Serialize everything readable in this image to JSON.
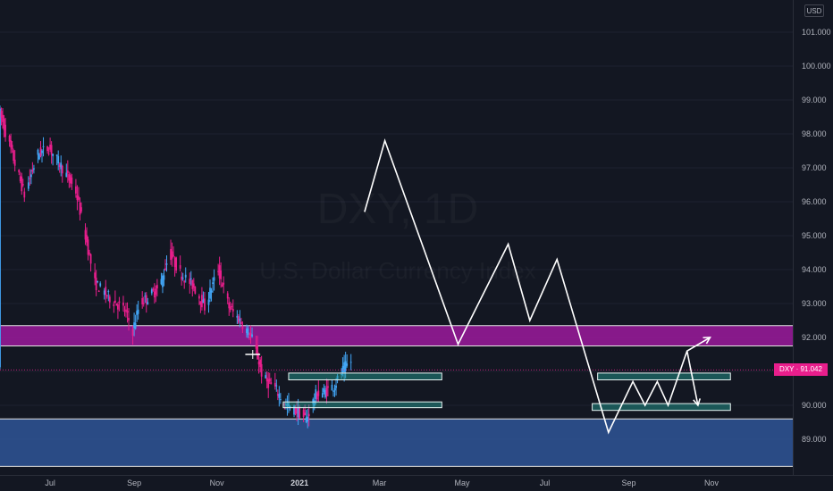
{
  "currency_badge": "USD",
  "price_tag": {
    "symbol": "DXY",
    "value": "91.042"
  },
  "watermark": {
    "symbol": "DXY, 1D",
    "subtitle": "U.S. Dollar Currency Index"
  },
  "colors": {
    "background": "#131722",
    "up_candle": "#42a5f5",
    "down_candle": "#e91e8c",
    "resistance_zone": "#9c1a9c",
    "support_zone": "#2f5597",
    "target_box": "#26a69a",
    "projection_line": "#ffffff"
  },
  "chart_data": {
    "type": "candlestick",
    "symbol": "DXY",
    "interval": "1D",
    "last_price": 91.042,
    "y_axis": {
      "ticks": [
        "101.000",
        "100.000",
        "99.000",
        "98.000",
        "97.000",
        "96.000",
        "95.000",
        "94.000",
        "93.000",
        "92.000",
        "91.000",
        "90.000",
        "89.000"
      ],
      "range": [
        88.1,
        101.4
      ]
    },
    "x_axis": {
      "ticks": [
        {
          "label": "Jul",
          "date": "2020-07-01",
          "bold": false
        },
        {
          "label": "Sep",
          "date": "2020-09-01",
          "bold": false
        },
        {
          "label": "Nov",
          "date": "2020-11-01",
          "bold": false
        },
        {
          "label": "2021",
          "date": "2021-01-01",
          "bold": true
        },
        {
          "label": "Mar",
          "date": "2021-03-01",
          "bold": false
        },
        {
          "label": "May",
          "date": "2021-05-01",
          "bold": false
        },
        {
          "label": "Jul",
          "date": "2021-07-01",
          "bold": false
        },
        {
          "label": "Sep",
          "date": "2021-09-01",
          "bold": false
        },
        {
          "label": "Nov",
          "date": "2021-11-01",
          "bold": false
        }
      ],
      "range": [
        "2020-05-25",
        "2021-12-31"
      ]
    },
    "price_path": [
      [
        "2020-05-25",
        98.6
      ],
      [
        "2020-06-06",
        97.0
      ],
      [
        "2020-06-12",
        96.2
      ],
      [
        "2020-06-22",
        97.4
      ],
      [
        "2020-06-30",
        97.6
      ],
      [
        "2020-07-10",
        97.0
      ],
      [
        "2020-07-20",
        96.3
      ],
      [
        "2020-07-27",
        95.0
      ],
      [
        "2020-08-03",
        93.6
      ],
      [
        "2020-08-13",
        93.2
      ],
      [
        "2020-08-25",
        92.8
      ],
      [
        "2020-08-31",
        92.2
      ],
      [
        "2020-09-05",
        93.0
      ],
      [
        "2020-09-12",
        93.2
      ],
      [
        "2020-09-20",
        93.5
      ],
      [
        "2020-09-27",
        94.5
      ],
      [
        "2020-10-05",
        93.9
      ],
      [
        "2020-10-15",
        93.5
      ],
      [
        "2020-10-23",
        92.9
      ],
      [
        "2020-11-02",
        94.0
      ],
      [
        "2020-11-10",
        92.9
      ],
      [
        "2020-11-20",
        92.4
      ],
      [
        "2020-11-28",
        91.9
      ],
      [
        "2020-12-05",
        90.8
      ],
      [
        "2020-12-14",
        90.5
      ],
      [
        "2020-12-22",
        90.0
      ],
      [
        "2020-12-31",
        89.8
      ],
      [
        "2021-01-06",
        89.6
      ],
      [
        "2021-01-13",
        90.3
      ],
      [
        "2021-01-20",
        90.4
      ],
      [
        "2021-01-27",
        90.6
      ],
      [
        "2021-02-03",
        91.1
      ],
      [
        "2021-02-08",
        91.3
      ]
    ],
    "zones": [
      {
        "id": "resistance",
        "from": 91.75,
        "to": 92.35
      },
      {
        "id": "support",
        "from": 88.2,
        "to": 89.6
      }
    ],
    "target_boxes": [
      {
        "x1": "2020-12-24",
        "x2": "2021-04-16",
        "y1": 90.75,
        "y2": 90.95
      },
      {
        "x1": "2020-12-20",
        "x2": "2021-04-16",
        "y1": 89.93,
        "y2": 90.1
      },
      {
        "x1": "2021-08-09",
        "x2": "2021-11-15",
        "y1": 90.75,
        "y2": 90.95
      },
      {
        "x1": "2021-08-05",
        "x2": "2021-11-15",
        "y1": 89.85,
        "y2": 90.05
      }
    ],
    "marker": {
      "x1": "2020-11-22",
      "x2": "2020-12-03",
      "y": 91.5
    },
    "projection": [
      [
        "2021-02-18",
        95.7
      ],
      [
        "2021-03-05",
        97.8
      ],
      [
        "2021-04-28",
        91.8
      ],
      [
        "2021-06-04",
        94.75
      ],
      [
        "2021-06-20",
        92.5
      ],
      [
        "2021-07-10",
        94.3
      ],
      [
        "2021-08-17",
        89.2
      ],
      [
        "2021-09-04",
        90.7
      ],
      [
        "2021-09-13",
        90.0
      ],
      [
        "2021-09-22",
        90.7
      ],
      [
        "2021-09-30",
        90.0
      ],
      [
        "2021-10-14",
        91.6
      ],
      [
        "2021-10-31",
        92.0
      ]
    ],
    "projection_branch": [
      [
        "2021-10-14",
        91.6
      ],
      [
        "2021-10-22",
        90.0
      ]
    ]
  }
}
